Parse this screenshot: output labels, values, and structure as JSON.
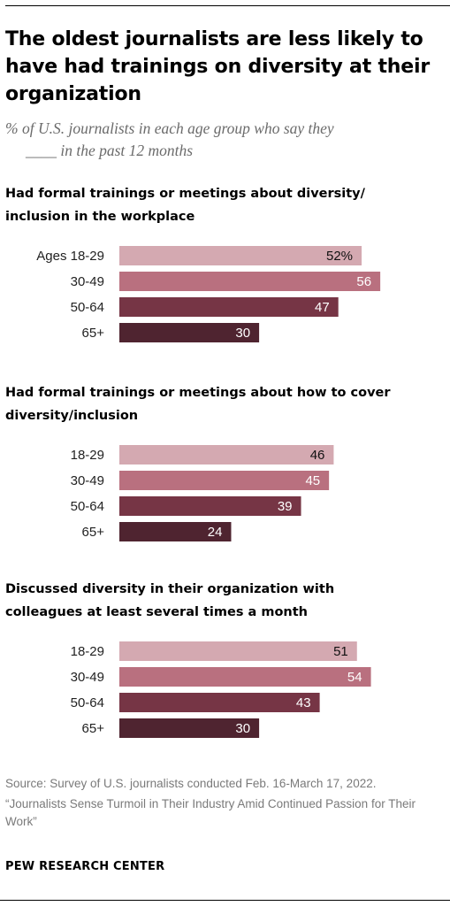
{
  "title": "The oldest journalists are less likely to have had trainings on diversity at their organization",
  "subtitle_line1": "% of U.S. journalists in each age group who say they",
  "subtitle_line2": "____ in the past 12 months",
  "colors": {
    "age_18_29": "#d4a9b1",
    "age_30_49": "#b9707f",
    "age_50_64": "#763545",
    "age_65_plus": "#4f2430"
  },
  "chart_data": [
    {
      "type": "bar",
      "title_lines": [
        "Had formal trainings or meetings about diversity/",
        "inclusion in the workplace"
      ],
      "categories": [
        "Ages 18-29",
        "30-49",
        "50-64",
        "65+"
      ],
      "values": [
        52,
        56,
        47,
        30
      ],
      "value_labels": [
        "52%",
        "56",
        "47",
        "30"
      ]
    },
    {
      "type": "bar",
      "title_lines": [
        "Had formal trainings or meetings about how to cover",
        "diversity/inclusion"
      ],
      "categories": [
        "18-29",
        "30-49",
        "50-64",
        "65+"
      ],
      "values": [
        46,
        45,
        39,
        24
      ],
      "value_labels": [
        "46",
        "45",
        "39",
        "24"
      ]
    },
    {
      "type": "bar",
      "title_lines": [
        "Discussed diversity in their organization with",
        "colleagues at least several times a month"
      ],
      "categories": [
        "18-29",
        "30-49",
        "50-64",
        "65+"
      ],
      "values": [
        51,
        54,
        43,
        30
      ],
      "value_labels": [
        "51",
        "54",
        "43",
        "30"
      ]
    }
  ],
  "source_line1": "Source: Survey of U.S. journalists conducted Feb. 16-March 17, 2022.",
  "source_line2": "“Journalists Sense Turmoil in Their Industry Amid Continued Passion for Their Work”",
  "org": "PEW RESEARCH CENTER"
}
